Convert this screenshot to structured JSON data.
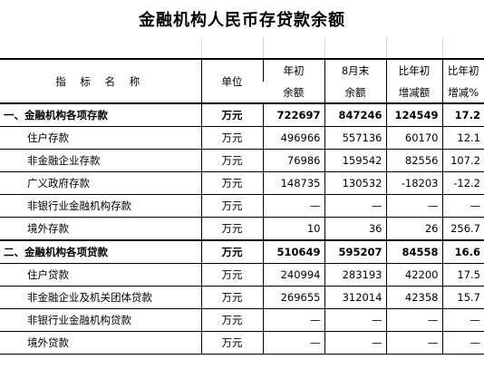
{
  "title": "金融机构人民币存贷款余额",
  "header": {
    "col_name": "指 标 名 称",
    "col_unit": "单位",
    "col_start_top": "年初",
    "col_start_bottom": "余额",
    "col_month_top": "8月末",
    "col_month_bottom": "余额",
    "col_chg_top": "比年初",
    "col_chg_bottom": "增减额",
    "col_pct_top": "比年初",
    "col_pct_bottom": "增减%"
  },
  "rows": [
    {
      "name": "一、金融机构各项存款",
      "unit": "万元",
      "start": "722697",
      "month": "847246",
      "chg": "124549",
      "pct": "17.2"
    },
    {
      "name": "住户存款",
      "unit": "万元",
      "start": "496966",
      "month": "557136",
      "chg": "60170",
      "pct": "12.1"
    },
    {
      "name": "非金融企业存款",
      "unit": "万元",
      "start": "76986",
      "month": "159542",
      "chg": "82556",
      "pct": "107.2"
    },
    {
      "name": "广义政府存款",
      "unit": "万元",
      "start": "148735",
      "month": "130532",
      "chg": "-18203",
      "pct": "-12.2"
    },
    {
      "name": "非银行业金融机构存款",
      "unit": "万元",
      "start": "—",
      "month": "—",
      "chg": "—",
      "pct": "—"
    },
    {
      "name": "境外存款",
      "unit": "万元",
      "start": "10",
      "month": "36",
      "chg": "26",
      "pct": "256.7"
    },
    {
      "name": "二、金融机构各项贷款",
      "unit": "万元",
      "start": "510649",
      "month": "595207",
      "chg": "84558",
      "pct": "16.6"
    },
    {
      "name": "住户贷款",
      "unit": "万元",
      "start": "240994",
      "month": "283193",
      "chg": "42200",
      "pct": "17.5"
    },
    {
      "name": "非金融企业及机关团体贷款",
      "unit": "万元",
      "start": "269655",
      "month": "312014",
      "chg": "42358",
      "pct": "15.7"
    },
    {
      "name": "非银行业金融机构贷款",
      "unit": "万元",
      "start": "—",
      "month": "—",
      "chg": "—",
      "pct": "—"
    },
    {
      "name": "境外贷款",
      "unit": "万元",
      "start": "—",
      "month": "—",
      "chg": "—",
      "pct": "—"
    }
  ]
}
